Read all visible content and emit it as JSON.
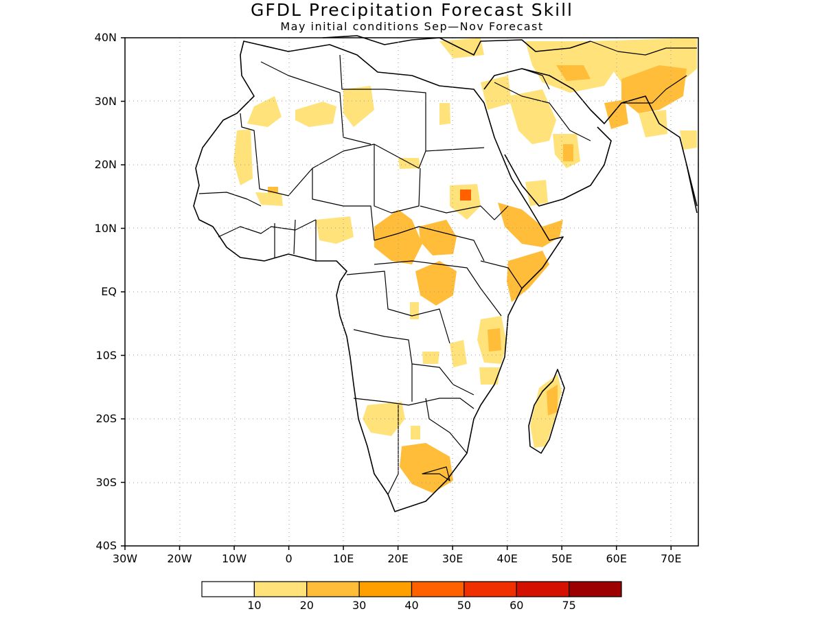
{
  "title": "GFDL Precipitation Forecast Skill",
  "subtitle": "May initial conditions  Sep—Nov Forecast",
  "y_axis_labels": [
    "40N",
    "30N",
    "20N",
    "10N",
    "EQ",
    "10S",
    "20S",
    "30S",
    "40S"
  ],
  "x_axis_labels": [
    "30W",
    "20W",
    "10W",
    "0",
    "10E",
    "20E",
    "30E",
    "40E",
    "50E",
    "60E",
    "70E"
  ],
  "colorbar": {
    "colors": [
      "#ffffff",
      "#ffe27a",
      "#ffbd3a",
      "#ff9f00",
      "#ff6000",
      "#f03000",
      "#d41000",
      "#9c0000"
    ],
    "labels": [
      "10",
      "20",
      "30",
      "40",
      "50",
      "60",
      "75"
    ]
  },
  "map_extent": {
    "lon": [
      -30,
      75
    ],
    "lat": [
      -40,
      40
    ]
  },
  "grid": "dotted",
  "map_colors": {
    "skill_10_20": "#ffe27a",
    "skill_20_30": "#ffbd3a",
    "skill_30_40": "#ff9f00",
    "skill_40_50": "#ff6000",
    "coast": "#000000"
  }
}
